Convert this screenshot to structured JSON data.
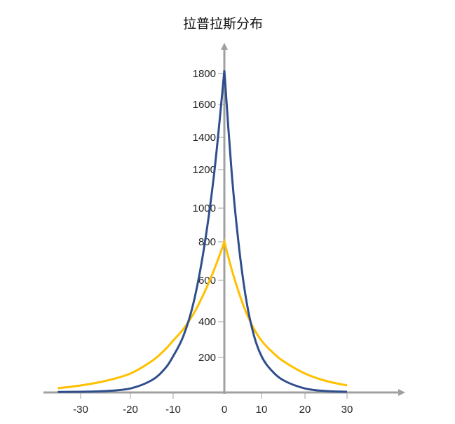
{
  "chart_data": {
    "type": "line",
    "title": "拉普拉斯分布",
    "xlabel": "",
    "ylabel": "",
    "xlim": [
      -36,
      40
    ],
    "ylim": [
      0,
      1900
    ],
    "x_ticks": [
      "-30",
      "-20",
      "-10",
      "0",
      "10",
      "20",
      "30"
    ],
    "y_ticks": [
      "200",
      "400",
      "600",
      "800",
      "1000",
      "1200",
      "1400",
      "1600",
      "1800"
    ],
    "grid": false,
    "legend": "none",
    "axis_color": "#a0a0a0",
    "x": [
      -35,
      -30,
      -25,
      -20,
      -15,
      -12,
      -10,
      -8,
      -6,
      -4,
      -2,
      0,
      2,
      4,
      6,
      8,
      10,
      12,
      15,
      20,
      25,
      30
    ],
    "series": [
      {
        "color": "#2f4e8c",
        "values": [
          3,
          4,
          8,
          23,
          70,
          134,
          207,
          320,
          494,
          763,
          1178,
          1820,
          1178,
          763,
          494,
          320,
          207,
          134,
          70,
          23,
          8,
          4
        ]
      },
      {
        "color": "#ffc000",
        "values": [
          24,
          40,
          66,
          108,
          179,
          241,
          294,
          359,
          439,
          536,
          655,
          800,
          655,
          536,
          439,
          359,
          294,
          241,
          179,
          108,
          66,
          40
        ]
      }
    ]
  }
}
